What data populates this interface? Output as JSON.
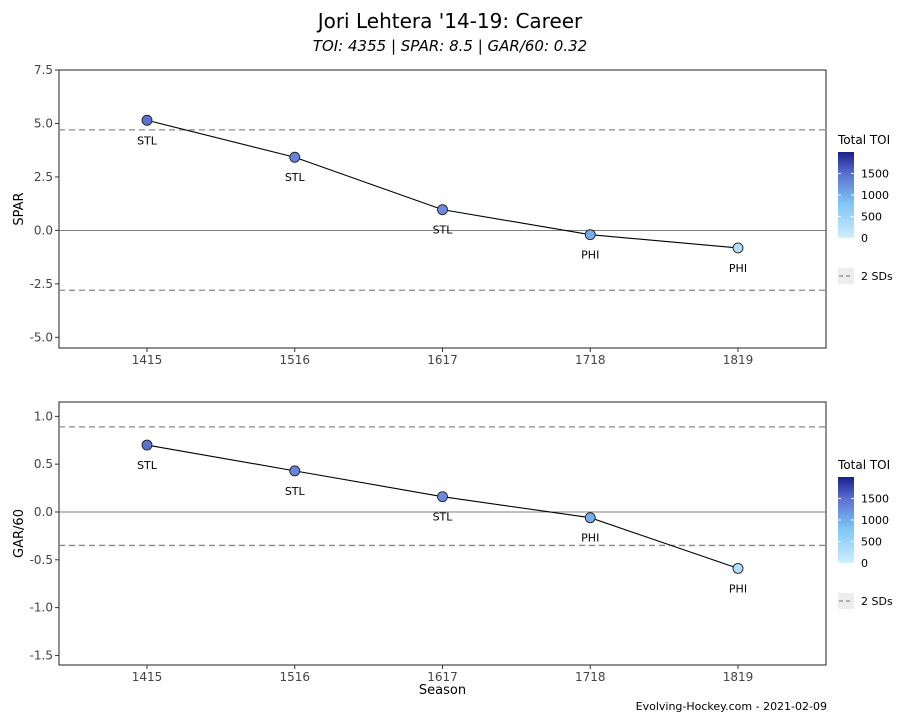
{
  "header": {
    "title": "Jori Lehtera '14-19: Career",
    "subtitle": "TOI: 4355 | SPAR: 8.5 | GAR/60: 0.32"
  },
  "caption": "Evolving-Hockey.com - 2021-02-09",
  "colors": {
    "toi_low": "#cfeeff",
    "toi_mid": "#7fb8f0",
    "toi_high": "#1b1f8c",
    "sd_line": "#888888",
    "zero_line": "#555555"
  },
  "chart_data": [
    {
      "type": "line",
      "xlabel": "",
      "ylabel": "SPAR",
      "categories": [
        "1415",
        "1516",
        "1617",
        "1718",
        "1819"
      ],
      "values": [
        5.15,
        3.42,
        0.97,
        -0.2,
        -0.82
      ],
      "teams": [
        "STL",
        "STL",
        "STL",
        "PHI",
        "PHI"
      ],
      "toi": [
        1210,
        1080,
        1040,
        780,
        245
      ],
      "ylim": [
        -5.5,
        7.5
      ],
      "yticks": [
        7.5,
        5.0,
        2.5,
        0.0,
        -2.5,
        -5.0
      ],
      "ytick_labels": [
        "7.5",
        "5.0",
        "2.5",
        "0.0",
        "-2.5",
        "-5.0"
      ],
      "sd_lines": [
        4.7,
        -2.8
      ],
      "zero_line": 0,
      "legend": {
        "title": "Total TOI",
        "ticks": [
          "1500",
          "1000",
          "500",
          "0"
        ],
        "sd_label": "2 SDs",
        "position": "right"
      }
    },
    {
      "type": "line",
      "xlabel": "Season",
      "ylabel": "GAR/60",
      "categories": [
        "1415",
        "1516",
        "1617",
        "1718",
        "1819"
      ],
      "values": [
        0.7,
        0.43,
        0.16,
        -0.06,
        -0.59
      ],
      "teams": [
        "STL",
        "STL",
        "STL",
        "PHI",
        "PHI"
      ],
      "toi": [
        1210,
        1080,
        1040,
        780,
        245
      ],
      "ylim": [
        -1.6,
        1.15
      ],
      "yticks": [
        1.0,
        0.5,
        0.0,
        -0.5,
        -1.0,
        -1.5
      ],
      "ytick_labels": [
        "1.0",
        "0.5",
        "0.0",
        "-0.5",
        "-1.0",
        "-1.5"
      ],
      "sd_lines": [
        0.89,
        -0.35
      ],
      "zero_line": 0,
      "legend": {
        "title": "Total TOI",
        "ticks": [
          "1500",
          "1000",
          "500",
          "0"
        ],
        "sd_label": "2 SDs",
        "position": "right"
      }
    }
  ]
}
